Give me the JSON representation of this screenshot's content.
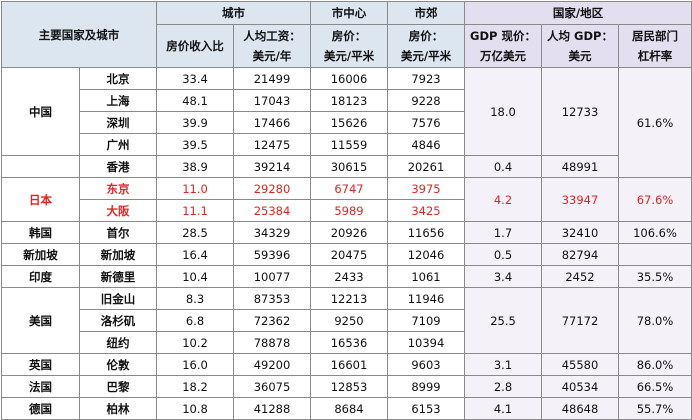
{
  "header": {
    "corner": "主要国家及城市",
    "group_city": "城市",
    "group_center": "市中心",
    "group_suburb": "市郊",
    "group_country": "国家/地区",
    "col_ratio": "房价收入比",
    "col_wage_1": "人均工资：",
    "col_wage_2": "美元/年",
    "col_center_1": "房价：",
    "col_center_2": "美元/平米",
    "col_suburb_1": "房价：",
    "col_suburb_2": "美元/平米",
    "col_gdp_1": "GDP 现价：",
    "col_gdp_2": "万亿美元",
    "col_gdppc_1": "人均 GDP：",
    "col_gdppc_2": "美元",
    "col_lev_1": "居民部门",
    "col_lev_2": "杠杆率"
  },
  "rows": [
    {
      "country": "中国",
      "city": "北京",
      "ratio": "33.4",
      "wage": "21499",
      "center": "16006",
      "suburb": "7923",
      "gdp": "18.0",
      "gdppc": "12733",
      "lev": "61.6%"
    },
    {
      "city": "上海",
      "ratio": "48.1",
      "wage": "17043",
      "center": "18123",
      "suburb": "9228"
    },
    {
      "city": "深圳",
      "ratio": "39.9",
      "wage": "17466",
      "center": "15626",
      "suburb": "7576"
    },
    {
      "city": "广州",
      "ratio": "39.5",
      "wage": "12475",
      "center": "11559",
      "suburb": "4846"
    },
    {
      "city": "香港",
      "ratio": "38.9",
      "wage": "39214",
      "center": "30615",
      "suburb": "20261",
      "gdp": "0.4",
      "gdppc": "48991",
      "lev": ""
    },
    {
      "country": "日本",
      "city": "东京",
      "ratio": "11.0",
      "wage": "29280",
      "center": "6747",
      "suburb": "3975",
      "gdp": "4.2",
      "gdppc": "33947",
      "lev": "67.6%"
    },
    {
      "city": "大阪",
      "ratio": "11.1",
      "wage": "25384",
      "center": "5989",
      "suburb": "3425"
    },
    {
      "country": "韩国",
      "city": "首尔",
      "ratio": "28.5",
      "wage": "34329",
      "center": "20926",
      "suburb": "11656",
      "gdp": "1.7",
      "gdppc": "32410",
      "lev": "106.6%"
    },
    {
      "country": "新加坡",
      "city": "新加坡",
      "ratio": "16.4",
      "wage": "59396",
      "center": "20475",
      "suburb": "12046",
      "gdp": "0.5",
      "gdppc": "82794",
      "lev": ""
    },
    {
      "country": "印度",
      "city": "新德里",
      "ratio": "10.4",
      "wage": "10077",
      "center": "2433",
      "suburb": "1061",
      "gdp": "3.4",
      "gdppc": "2452",
      "lev": "35.5%"
    },
    {
      "country": "美国",
      "city": "旧金山",
      "ratio": "8.3",
      "wage": "87353",
      "center": "12213",
      "suburb": "11946",
      "gdp": "25.5",
      "gdppc": "77172",
      "lev": "78.0%"
    },
    {
      "city": "洛杉矶",
      "ratio": "6.8",
      "wage": "72362",
      "center": "9250",
      "suburb": "7109"
    },
    {
      "city": "纽约",
      "ratio": "10.2",
      "wage": "78878",
      "center": "16536",
      "suburb": "10394"
    },
    {
      "country": "英国",
      "city": "伦敦",
      "ratio": "16.0",
      "wage": "49200",
      "center": "16601",
      "suburb": "9603",
      "gdp": "3.1",
      "gdppc": "45580",
      "lev": "86.0%"
    },
    {
      "country": "法国",
      "city": "巴黎",
      "ratio": "18.2",
      "wage": "36075",
      "center": "12853",
      "suburb": "8999",
      "gdp": "2.8",
      "gdppc": "40534",
      "lev": "66.5%"
    },
    {
      "country": "德国",
      "city": "柏林",
      "ratio": "10.8",
      "wage": "41288",
      "center": "8684",
      "suburb": "6153",
      "gdp": "4.1",
      "gdppc": "48648",
      "lev": "55.7%"
    }
  ],
  "colors": {
    "highlight_text": "#e02424",
    "header_blue": "#dce6f1",
    "header_purple": "#e4dff0"
  }
}
